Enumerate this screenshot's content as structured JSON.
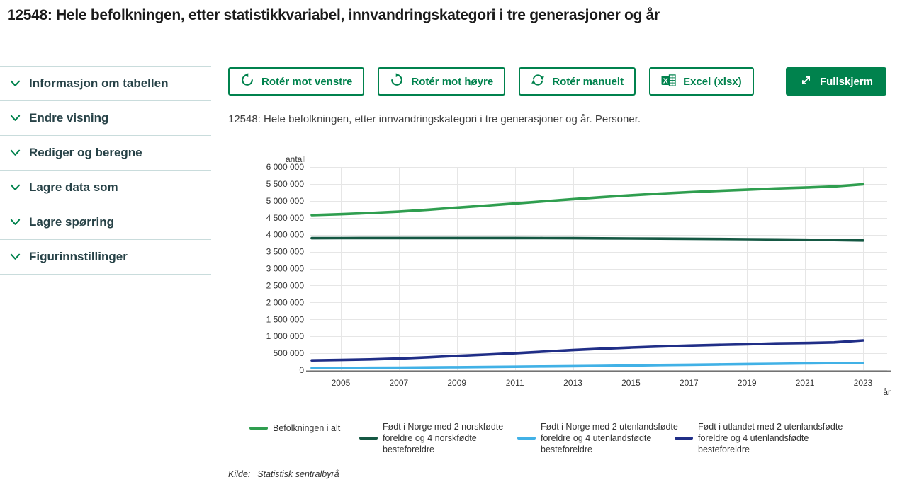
{
  "page_title": "12548: Hele befolkningen, etter statistikkvariabel, innvandringskategori i tre generasjoner og år",
  "sidebar": {
    "items": [
      {
        "label": "Informasjon om tabellen"
      },
      {
        "label": "Endre visning"
      },
      {
        "label": "Rediger og beregne"
      },
      {
        "label": "Lagre data som"
      },
      {
        "label": "Lagre spørring"
      },
      {
        "label": "Figurinnstillinger"
      }
    ]
  },
  "toolbar": {
    "buttons": [
      {
        "label": "Rotér mot venstre",
        "icon": "rotate-left-icon"
      },
      {
        "label": "Rotér mot høyre",
        "icon": "rotate-right-icon"
      },
      {
        "label": "Rotér manuelt",
        "icon": "rotate-manual-icon"
      },
      {
        "label": "Excel (xlsx)",
        "icon": "excel-icon"
      }
    ],
    "fullscreen": {
      "label": "Fullskjerm",
      "icon": "fullscreen-icon"
    }
  },
  "source": {
    "label": "Kilde:",
    "text": "Statistisk sentralbyrå"
  },
  "colors": {
    "accent_green": "#00824d",
    "sidebar_text": "#274247",
    "grid_line": "#e6e6e6",
    "axis_line": "#737373"
  },
  "chart_data": {
    "type": "line",
    "title": "12548: Hele befolkningen, etter innvandringskategori i tre generasjoner og år. Personer.",
    "xlabel": "år",
    "ylabel": "antall",
    "x": [
      2004,
      2005,
      2006,
      2007,
      2008,
      2009,
      2010,
      2011,
      2012,
      2013,
      2014,
      2015,
      2016,
      2017,
      2018,
      2019,
      2020,
      2021,
      2022,
      2023
    ],
    "x_tick_labels": [
      "2005",
      "2007",
      "2009",
      "2011",
      "2013",
      "2015",
      "2017",
      "2019",
      "2021",
      "2023"
    ],
    "ylim": [
      0,
      6000000
    ],
    "y_tick_interval": 500000,
    "grid": true,
    "legend_position": "bottom",
    "series": [
      {
        "name": "Befolkningen i alt",
        "color": "#2f9e4f",
        "values": [
          4577457,
          4606363,
          4640219,
          4681134,
          4737171,
          4799252,
          4858199,
          4920305,
          4985870,
          5051275,
          5109056,
          5165802,
          5213985,
          5258317,
          5295619,
          5328212,
          5367580,
          5391369,
          5425270,
          5488984
        ]
      },
      {
        "name": "Født i Norge med 2 norskfødte foreldre og 4 norskfødte besteforeldre",
        "color": "#155843",
        "values": [
          3897000,
          3899000,
          3900000,
          3901000,
          3902000,
          3902000,
          3901000,
          3900000,
          3898000,
          3896000,
          3893000,
          3889000,
          3885000,
          3880000,
          3874000,
          3867000,
          3861000,
          3853000,
          3842000,
          3830000
        ]
      },
      {
        "name": "Født i Norge med 2 utenlandsfødte foreldre og 4 utenlandsfødte besteforeldre",
        "color": "#41b1e6",
        "values": [
          60000,
          64000,
          68000,
          74000,
          79000,
          86000,
          93000,
          101000,
          108000,
          117000,
          126000,
          136000,
          150000,
          159000,
          170000,
          180000,
          189000,
          198000,
          206000,
          213830
        ]
      },
      {
        "name": "Født i utlandet med 2 utenlandsfødte foreldre og 4 utenlandsfødte besteforeldre",
        "color": "#202e87",
        "values": [
          289000,
          301045,
          318514,
          341830,
          380644,
          422595,
          459346,
          500465,
          546732,
          593321,
          633110,
          669380,
          698550,
          724987,
          746661,
          765108,
          790497,
          800094,
          819356,
          877227
        ]
      }
    ]
  }
}
